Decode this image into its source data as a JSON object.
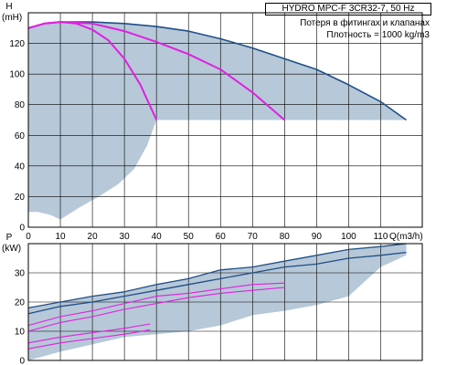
{
  "header": {
    "title": "HYDRO MPC-F 3CR32-7, 50 Hz",
    "note1": "Потеря в фитингах и клапанах",
    "note2": "Плотность = 1000 kg/m3"
  },
  "chart_data": [
    {
      "type": "line",
      "ylabel": "H",
      "yunit": "(mH)",
      "xlabel": "Q(m3/h)",
      "xlim": [
        0,
        123
      ],
      "ylim": [
        0,
        140
      ],
      "xticks": [
        0,
        10,
        20,
        30,
        40,
        50,
        60,
        70,
        80,
        90,
        100,
        110
      ],
      "yticks": [
        0,
        20,
        40,
        60,
        80,
        100,
        120
      ],
      "grid": true,
      "colors": {
        "area": "#b7c8d8",
        "curve": "#1f4f86",
        "system": "#e020e0"
      },
      "operating_area": {
        "upper": [
          [
            0,
            130
          ],
          [
            3,
            132
          ],
          [
            10,
            134
          ],
          [
            20,
            134
          ],
          [
            30,
            133
          ],
          [
            40,
            131
          ],
          [
            50,
            128
          ],
          [
            60,
            123
          ],
          [
            70,
            117
          ],
          [
            80,
            110
          ],
          [
            90,
            103
          ],
          [
            100,
            93
          ],
          [
            110,
            82
          ],
          [
            118,
            70
          ]
        ],
        "lower_limit_y": 70,
        "bottom": [
          [
            40,
            70
          ],
          [
            37,
            53
          ],
          [
            33,
            38
          ],
          [
            28,
            28
          ],
          [
            22,
            20
          ],
          [
            16,
            13
          ],
          [
            13,
            9
          ],
          [
            10,
            5
          ],
          [
            7,
            8
          ],
          [
            3,
            10
          ],
          [
            0,
            10
          ]
        ]
      },
      "series": [
        {
          "values": [
            [
              0,
              130
            ],
            [
              5,
              133
            ],
            [
              10,
              134
            ],
            [
              20,
              134
            ],
            [
              30,
              133
            ],
            [
              40,
              131
            ],
            [
              50,
              128
            ],
            [
              60,
              123
            ],
            [
              70,
              117
            ],
            [
              80,
              110
            ],
            [
              90,
              103
            ],
            [
              100,
              93
            ],
            [
              110,
              82
            ],
            [
              118,
              70
            ]
          ]
        },
        {
          "values": [
            [
              0,
              130
            ],
            [
              5,
              133
            ],
            [
              10,
              134
            ],
            [
              15,
              133
            ],
            [
              20,
              129
            ],
            [
              25,
              122
            ],
            [
              30,
              110
            ],
            [
              35,
              93
            ],
            [
              40,
              70
            ]
          ]
        },
        {
          "values": [
            [
              0,
              130
            ],
            [
              5,
              133
            ],
            [
              10,
              134
            ],
            [
              20,
              133
            ],
            [
              30,
              128
            ],
            [
              40,
              121
            ],
            [
              50,
              113
            ],
            [
              60,
              103
            ],
            [
              70,
              88
            ],
            [
              80,
              70
            ]
          ]
        }
      ]
    },
    {
      "type": "line",
      "ylabel": "P",
      "yunit": "(kW)",
      "xlim": [
        0,
        123
      ],
      "ylim": [
        0,
        40
      ],
      "yticks": [
        0,
        10,
        20,
        30
      ],
      "grid": true,
      "colors": {
        "area": "#b7c8d8",
        "curve": "#1f4f86",
        "system": "#e020e0"
      },
      "operating_area": {
        "upper": [
          [
            0,
            18
          ],
          [
            10,
            20
          ],
          [
            20,
            22
          ],
          [
            30,
            23.5
          ],
          [
            40,
            26
          ],
          [
            50,
            28
          ],
          [
            60,
            31
          ],
          [
            70,
            32
          ],
          [
            80,
            34
          ],
          [
            90,
            36
          ],
          [
            100,
            38
          ],
          [
            110,
            39
          ],
          [
            118,
            40
          ]
        ],
        "lower": [
          [
            118,
            36
          ],
          [
            110,
            32
          ],
          [
            105,
            27
          ],
          [
            100,
            22
          ],
          [
            90,
            19
          ],
          [
            80,
            17
          ],
          [
            70,
            15.5
          ],
          [
            60,
            12
          ],
          [
            50,
            10
          ],
          [
            40,
            9
          ],
          [
            30,
            8
          ],
          [
            20,
            5.5
          ],
          [
            10,
            3
          ],
          [
            0,
            0
          ]
        ]
      },
      "series": [
        {
          "values": [
            [
              0,
              18
            ],
            [
              10,
              20
            ],
            [
              20,
              22
            ],
            [
              30,
              23.5
            ],
            [
              40,
              26
            ],
            [
              50,
              28
            ],
            [
              60,
              31
            ],
            [
              70,
              32
            ],
            [
              80,
              34
            ],
            [
              90,
              36
            ],
            [
              100,
              38
            ],
            [
              110,
              39
            ],
            [
              118,
              40
            ]
          ]
        },
        {
          "values": [
            [
              0,
              16
            ],
            [
              10,
              18.5
            ],
            [
              20,
              20
            ],
            [
              30,
              22
            ],
            [
              40,
              24
            ],
            [
              50,
              26
            ],
            [
              60,
              28
            ],
            [
              70,
              30
            ],
            [
              80,
              32
            ],
            [
              90,
              33
            ],
            [
              100,
              35
            ],
            [
              110,
              36
            ],
            [
              118,
              37
            ]
          ]
        },
        {
          "values": [
            [
              0,
              12
            ],
            [
              10,
              15
            ],
            [
              20,
              17
            ],
            [
              30,
              19.5
            ],
            [
              40,
              22
            ],
            [
              50,
              23
            ],
            [
              60,
              24.5
            ],
            [
              70,
              26
            ],
            [
              80,
              26.5
            ]
          ]
        },
        {
          "values": [
            [
              0,
              10
            ],
            [
              10,
              13
            ],
            [
              20,
              15
            ],
            [
              30,
              17.5
            ],
            [
              40,
              19.5
            ],
            [
              50,
              21.5
            ],
            [
              60,
              23
            ],
            [
              70,
              24
            ],
            [
              80,
              25
            ]
          ]
        },
        {
          "values": [
            [
              0,
              6
            ],
            [
              10,
              8
            ],
            [
              20,
              9.5
            ],
            [
              30,
              11
            ],
            [
              38,
              12.5
            ]
          ]
        },
        {
          "values": [
            [
              0,
              4
            ],
            [
              10,
              6
            ],
            [
              20,
              7.5
            ],
            [
              30,
              9
            ],
            [
              38,
              10.5
            ]
          ]
        }
      ]
    }
  ]
}
